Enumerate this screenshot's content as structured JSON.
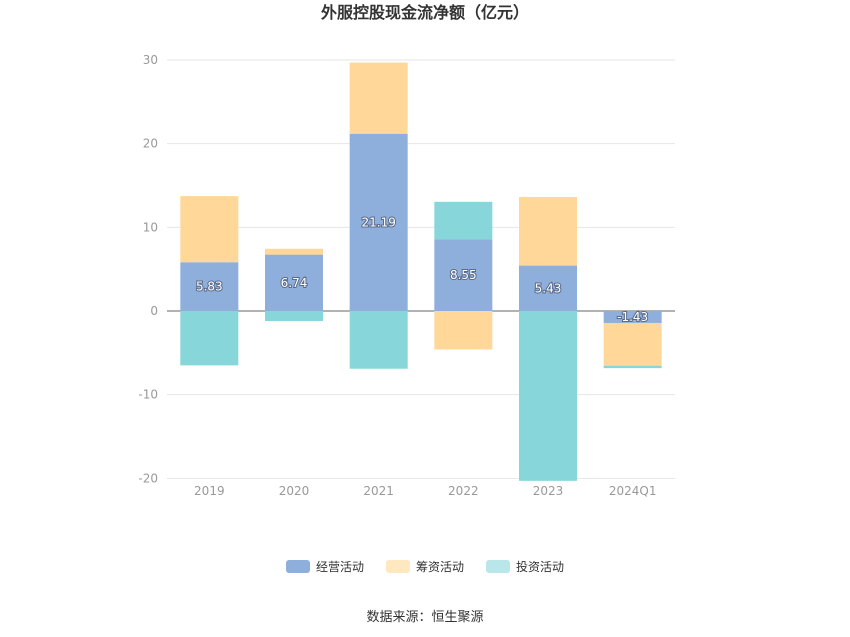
{
  "chart_data": {
    "type": "bar",
    "stacked": true,
    "title": "外服控股现金流净额（亿元）",
    "categories": [
      "2019",
      "2020",
      "2021",
      "2022",
      "2023",
      "2024Q1"
    ],
    "series": [
      {
        "name": "经营活动",
        "color": "#8eaedb",
        "values": [
          5.83,
          6.74,
          21.19,
          8.55,
          5.43,
          -1.43
        ],
        "labels": [
          "5.83",
          "6.74",
          "21.19",
          "8.55",
          "5.43",
          "-1.43"
        ]
      },
      {
        "name": "筹资活动",
        "color": "#ffd899",
        "values": [
          7.9,
          0.7,
          8.5,
          -4.6,
          8.2,
          -5.1
        ]
      },
      {
        "name": "投资活动",
        "color": "#87d7da",
        "values": [
          -6.5,
          -1.2,
          -6.9,
          4.5,
          -20.3,
          -0.3
        ]
      }
    ],
    "yticks": [
      30,
      20,
      10,
      0,
      -10,
      -20
    ],
    "ylim": [
      -20,
      30
    ],
    "grid": true,
    "legend_position": "bottom"
  },
  "source": "数据来源：恒生聚源",
  "legend_colors": {
    "经营活动": "#8eaedb",
    "筹资活动": "#ffe7c0",
    "投资活动": "#b9e6e8"
  }
}
